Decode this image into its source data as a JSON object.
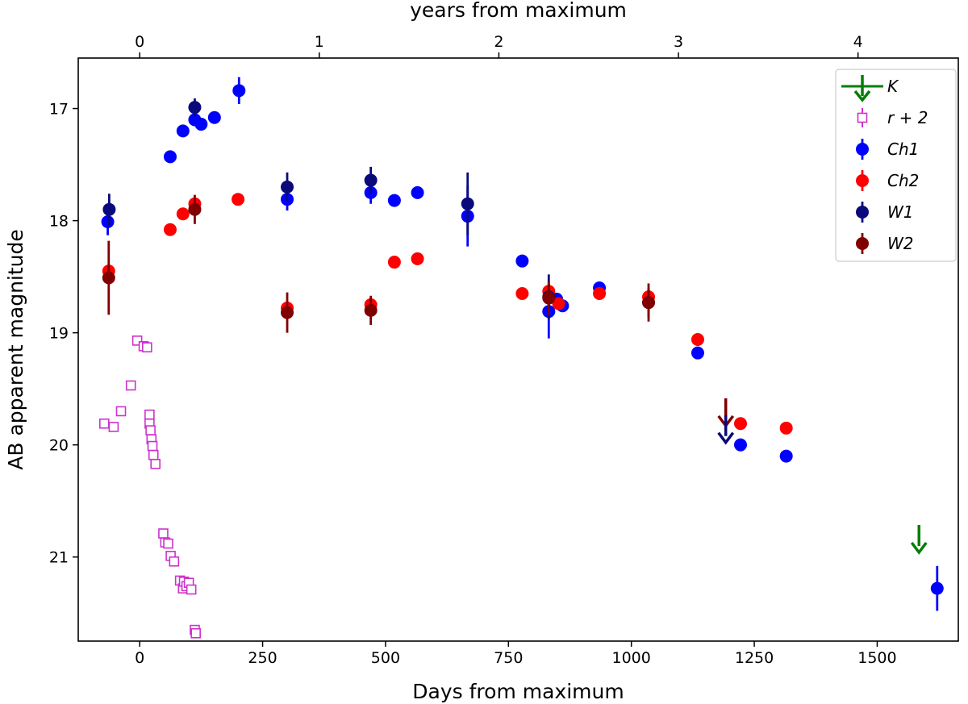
{
  "chart_data": {
    "type": "scatter",
    "xlabel": "Days from maximum",
    "ylabel": "AB apparent magnitude",
    "top_xlabel": "years from maximum",
    "xlim": [
      -125,
      1665
    ],
    "ylim": [
      21.75,
      16.55
    ],
    "y_inverted": true,
    "x_ticks": [
      0,
      250,
      500,
      750,
      1000,
      1250,
      1500
    ],
    "y_ticks": [
      17,
      18,
      19,
      20,
      21
    ],
    "top_x_ticks_years": [
      0,
      1,
      2,
      3,
      4
    ],
    "days_per_year": 365.25,
    "grid": false,
    "legend_position": "upper right",
    "colors": {
      "K": "#008000",
      "r2": "#cc33cc",
      "Ch1": "#0000ff",
      "Ch2": "#ff0000",
      "W1": "#0a0a7a",
      "W2": "#800000"
    },
    "legend": [
      {
        "key": "K",
        "label": "K"
      },
      {
        "key": "r2",
        "label": "r + 2"
      },
      {
        "key": "Ch1",
        "label": "Ch1"
      },
      {
        "key": "Ch2",
        "label": "Ch2"
      },
      {
        "key": "W1",
        "label": "W1"
      },
      {
        "key": "W2",
        "label": "W2"
      }
    ],
    "series": [
      {
        "name": "r + 2",
        "key": "r2",
        "marker": "square-open",
        "points": [
          [
            -72,
            19.81
          ],
          [
            -53,
            19.84
          ],
          [
            -38,
            19.7
          ],
          [
            -18,
            19.47
          ],
          [
            -5,
            19.07
          ],
          [
            8,
            19.12
          ],
          [
            15,
            19.13
          ],
          [
            20,
            19.73
          ],
          [
            20,
            19.81
          ],
          [
            22,
            19.87
          ],
          [
            24,
            19.95
          ],
          [
            26,
            20.01
          ],
          [
            28,
            20.09
          ],
          [
            32,
            20.17
          ],
          [
            48,
            20.79
          ],
          [
            52,
            20.87
          ],
          [
            58,
            20.88
          ],
          [
            63,
            20.99
          ],
          [
            70,
            21.04
          ],
          [
            82,
            21.21
          ],
          [
            88,
            21.28
          ],
          [
            90,
            21.22
          ],
          [
            95,
            21.26
          ],
          [
            100,
            21.23
          ],
          [
            105,
            21.29
          ],
          [
            112,
            21.65
          ],
          [
            114,
            21.68
          ]
        ]
      },
      {
        "name": "Ch1",
        "key": "Ch1",
        "marker": "circle",
        "points": [
          [
            -65,
            18.01,
            0.12
          ],
          [
            62,
            17.43,
            0
          ],
          [
            88,
            17.2,
            0
          ],
          [
            112,
            17.1,
            0
          ],
          [
            125,
            17.14,
            0
          ],
          [
            152,
            17.08,
            0
          ],
          [
            202,
            16.84,
            0.12
          ],
          [
            300,
            17.81,
            0.1
          ],
          [
            470,
            17.75,
            0.1
          ],
          [
            518,
            17.82,
            0
          ],
          [
            565,
            17.75,
            0
          ],
          [
            667,
            17.96,
            0.27
          ],
          [
            778,
            18.36,
            0
          ],
          [
            832,
            18.81,
            0.24
          ],
          [
            848,
            18.7,
            0
          ],
          [
            860,
            18.76,
            0
          ],
          [
            935,
            18.6,
            0
          ],
          [
            1135,
            19.18,
            0
          ],
          [
            1222,
            20.0,
            0
          ],
          [
            1315,
            20.1,
            0
          ],
          [
            1622,
            21.28,
            0.2
          ]
        ]
      },
      {
        "name": "Ch2",
        "key": "Ch2",
        "marker": "circle",
        "points": [
          [
            -63,
            18.45,
            0
          ],
          [
            62,
            18.08,
            0
          ],
          [
            88,
            17.94,
            0
          ],
          [
            112,
            17.85,
            0
          ],
          [
            200,
            17.81,
            0
          ],
          [
            300,
            18.78,
            0
          ],
          [
            470,
            18.75,
            0
          ],
          [
            518,
            18.37,
            0
          ],
          [
            565,
            18.34,
            0
          ],
          [
            778,
            18.65,
            0
          ],
          [
            832,
            18.63,
            0
          ],
          [
            852,
            18.74,
            0
          ],
          [
            935,
            18.65,
            0
          ],
          [
            1035,
            18.68,
            0
          ],
          [
            1135,
            19.06,
            0
          ],
          [
            1222,
            19.81,
            0
          ],
          [
            1315,
            19.85,
            0
          ]
        ]
      },
      {
        "name": "W1",
        "key": "W1",
        "marker": "circle",
        "points": [
          [
            -62,
            17.9,
            0.14
          ],
          [
            112,
            16.99,
            0.08
          ],
          [
            300,
            17.7,
            0.13
          ],
          [
            470,
            17.64,
            0.12
          ],
          [
            667,
            17.85,
            0.28
          ],
          [
            832,
            18.68,
            0.2
          ],
          [
            1035,
            18.73,
            0.13
          ]
        ]
      },
      {
        "name": "W2",
        "key": "W2",
        "marker": "circle",
        "points": [
          [
            -63,
            18.51,
            0.33
          ],
          [
            112,
            17.9,
            0.13
          ],
          [
            300,
            18.82,
            0.18
          ],
          [
            470,
            18.8,
            0.13
          ],
          [
            832,
            18.69,
            0.15
          ],
          [
            1035,
            18.73,
            0.17
          ]
        ]
      }
    ],
    "upper_limits": [
      {
        "key": "K",
        "x": 1585,
        "y": 20.93
      },
      {
        "key": "W2",
        "x": 1192,
        "y": 19.8
      },
      {
        "key": "W1",
        "x": 1192,
        "y": 19.95
      }
    ]
  }
}
